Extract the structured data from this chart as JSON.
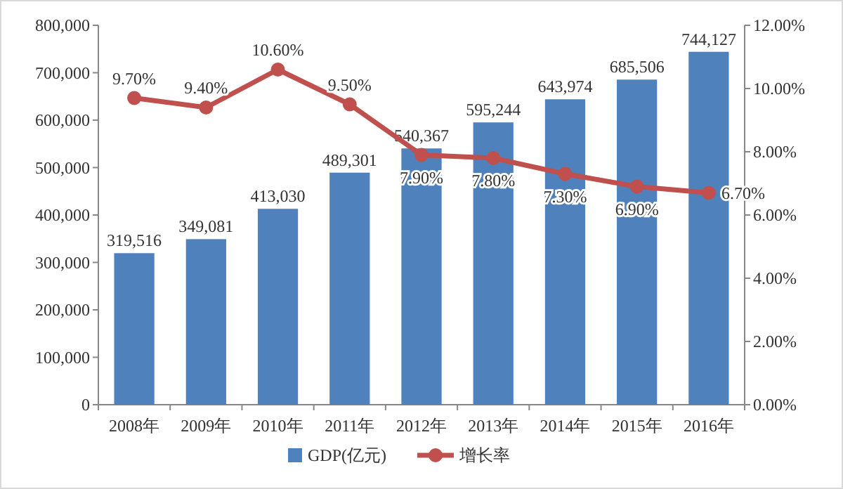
{
  "chart_data": {
    "type": "bar",
    "categories": [
      "2008年",
      "2009年",
      "2010年",
      "2011年",
      "2012年",
      "2013年",
      "2014年",
      "2015年",
      "2016年"
    ],
    "series": [
      {
        "name": "GDP(亿元)",
        "color": "#4f81bd",
        "values": [
          319516,
          349081,
          413030,
          489301,
          540367,
          595244,
          643974,
          685506,
          744127
        ],
        "value_labels": [
          "319,516",
          "349,081",
          "413,030",
          "489,301",
          "540,367",
          "595,244",
          "643,974",
          "685,506",
          "744,127"
        ]
      },
      {
        "name": "增长率",
        "type": "line",
        "axis": "y2",
        "color": "#c0504d",
        "marker": "circle",
        "values": [
          9.7,
          9.4,
          10.6,
          9.5,
          7.9,
          7.8,
          7.3,
          6.9,
          6.7
        ],
        "value_labels": [
          "9.70%",
          "9.40%",
          "10.60%",
          "9.50%",
          "7.90%",
          "7.80%",
          "7.30%",
          "6.90%",
          "6.70%"
        ]
      }
    ],
    "ylim": [
      0,
      800000
    ],
    "yticks": [
      0,
      {
        "value": 100000,
        "label": "100,000"
      },
      {
        "value": 200000,
        "label": "200,000"
      },
      {
        "value": 300000,
        "label": "300,000"
      },
      {
        "value": 400000,
        "label": "400,000"
      },
      {
        "value": 500000,
        "label": "500,000"
      },
      {
        "value": 600000,
        "label": "600,000"
      },
      {
        "value": 700000,
        "label": "700,000"
      },
      {
        "value": 800000,
        "label": "800,000"
      }
    ],
    "y2lim": [
      0,
      12
    ],
    "y2ticks": [
      {
        "value": 0,
        "label": "0.00%"
      },
      {
        "value": 2,
        "label": "2.00%"
      },
      {
        "value": 4,
        "label": "4.00%"
      },
      {
        "value": 6,
        "label": "6.00%"
      },
      {
        "value": 8,
        "label": "8.00%"
      },
      {
        "value": 10,
        "label": "10.00%"
      },
      {
        "value": 12,
        "label": "12.00%"
      }
    ],
    "legend": "bottom"
  }
}
